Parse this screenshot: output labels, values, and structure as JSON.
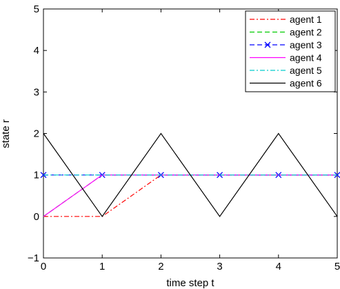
{
  "chart_data": {
    "type": "line",
    "title": "",
    "xlabel": "time step t",
    "ylabel": "state r",
    "xlim": [
      0,
      5
    ],
    "ylim": [
      -1,
      5
    ],
    "xticks": [
      "0",
      "1",
      "2",
      "3",
      "4",
      "5"
    ],
    "yticks": [
      "−1",
      "0",
      "1",
      "2",
      "3",
      "4",
      "5"
    ],
    "grid": false,
    "legend_position": "top-right",
    "series": [
      {
        "name": "agent 1",
        "x": [
          0,
          1,
          2,
          3,
          4,
          5
        ],
        "y": [
          0,
          0,
          1,
          1,
          1,
          1
        ],
        "color": "#ff0000",
        "dash": "dash-dot",
        "marker": "none"
      },
      {
        "name": "agent 2",
        "x": [
          0,
          1,
          2,
          3,
          4,
          5
        ],
        "y": [
          0,
          1,
          1,
          1,
          1,
          1
        ],
        "color": "#00cc00",
        "dash": "dashed",
        "marker": "none"
      },
      {
        "name": "agent 3",
        "x": [
          0,
          1,
          2,
          3,
          4,
          5
        ],
        "y": [
          1,
          1,
          1,
          1,
          1,
          1
        ],
        "color": "#0000ff",
        "dash": "dashed",
        "marker": "x"
      },
      {
        "name": "agent 4",
        "x": [
          0,
          1,
          2,
          3,
          4,
          5
        ],
        "y": [
          0,
          1,
          1,
          1,
          1,
          1
        ],
        "color": "#ff00ff",
        "dash": "solid",
        "marker": "none"
      },
      {
        "name": "agent 5",
        "x": [
          0,
          1,
          2,
          3,
          4,
          5
        ],
        "y": [
          1,
          1,
          1,
          1,
          1,
          1
        ],
        "color": "#00cccc",
        "dash": "dash-dot",
        "marker": "none"
      },
      {
        "name": "agent 6",
        "x": [
          0,
          1,
          2,
          3,
          4,
          5
        ],
        "y": [
          2,
          0,
          2,
          0,
          2,
          0
        ],
        "color": "#000000",
        "dash": "solid",
        "marker": "none"
      }
    ]
  }
}
